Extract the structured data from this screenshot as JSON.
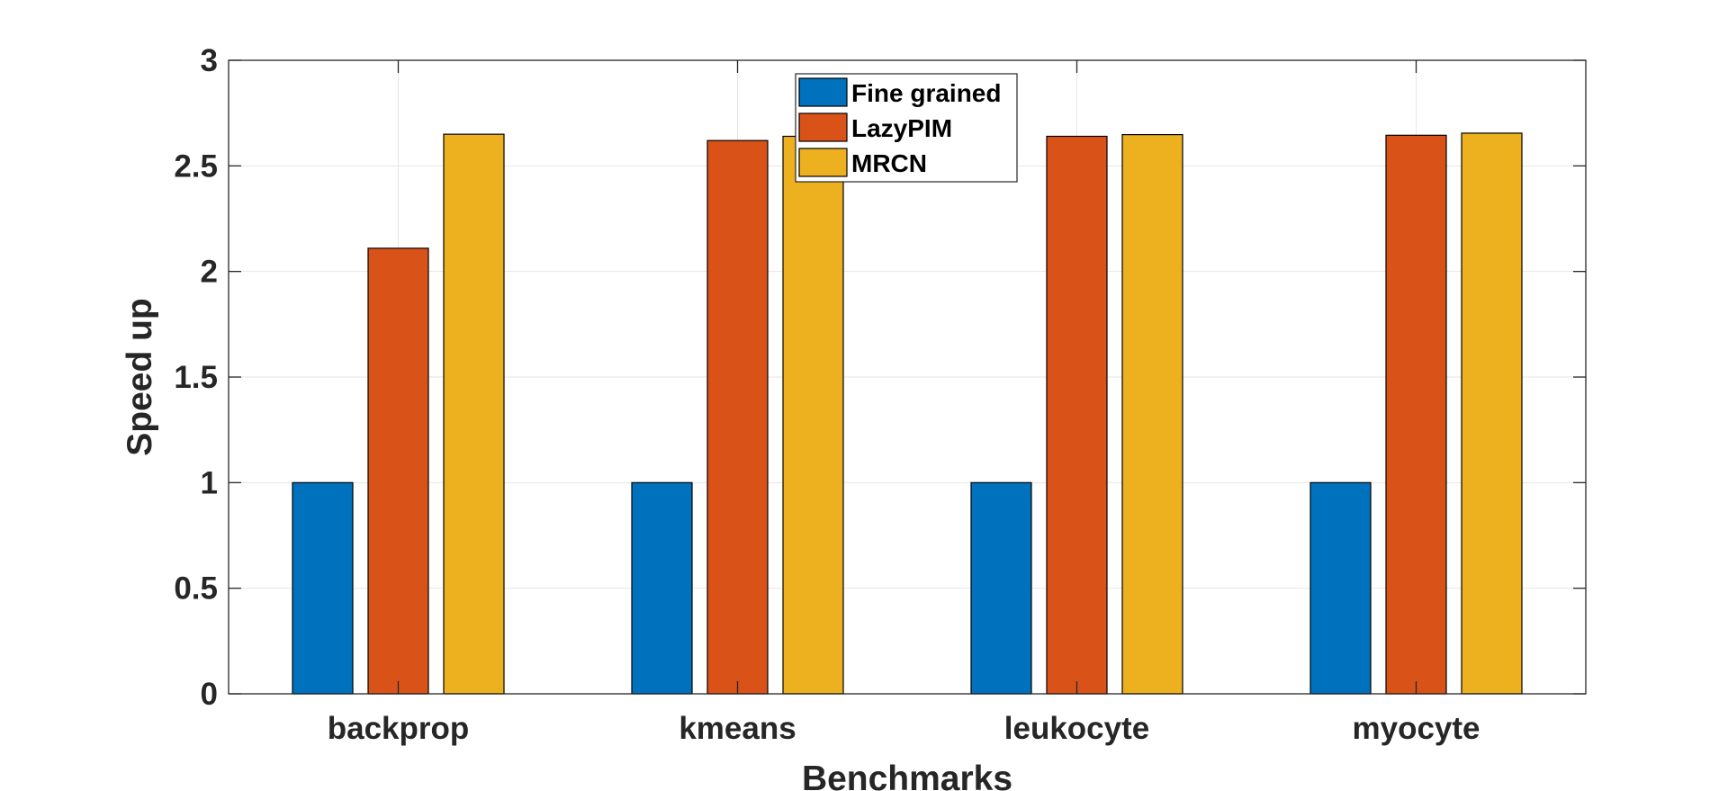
{
  "chart_data": {
    "type": "bar",
    "title": "",
    "xlabel": "Benchmarks",
    "ylabel": "Speed up",
    "categories": [
      "backprop",
      "kmeans",
      "leukocyte",
      "myocyte"
    ],
    "series": [
      {
        "name": "Fine grained",
        "color": "#0072BD",
        "values": [
          1.0,
          1.0,
          1.0,
          1.0
        ]
      },
      {
        "name": "LazyPIM",
        "color": "#D95319",
        "values": [
          2.11,
          2.62,
          2.64,
          2.645
        ]
      },
      {
        "name": "MRCN",
        "color": "#EDB120",
        "values": [
          2.65,
          2.64,
          2.648,
          2.655
        ]
      }
    ],
    "ylim": [
      0,
      3
    ],
    "yticks": [
      0,
      0.5,
      1,
      1.5,
      2,
      2.5,
      3
    ],
    "ytick_labels": [
      "0",
      "0.5",
      "1",
      "1.5",
      "2",
      "2.5",
      "3"
    ],
    "grid": true,
    "legend_location": "top-center"
  }
}
